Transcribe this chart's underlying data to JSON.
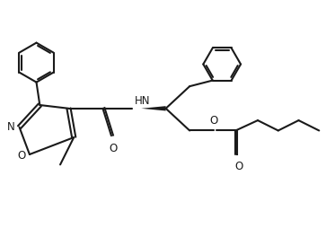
{
  "bg_color": "#ffffff",
  "line_color": "#1a1a1a",
  "line_width": 1.5,
  "fig_width": 3.73,
  "fig_height": 2.55,
  "dpi": 100,
  "xlim": [
    0.0,
    9.8
  ],
  "ylim": [
    1.5,
    7.0
  ]
}
